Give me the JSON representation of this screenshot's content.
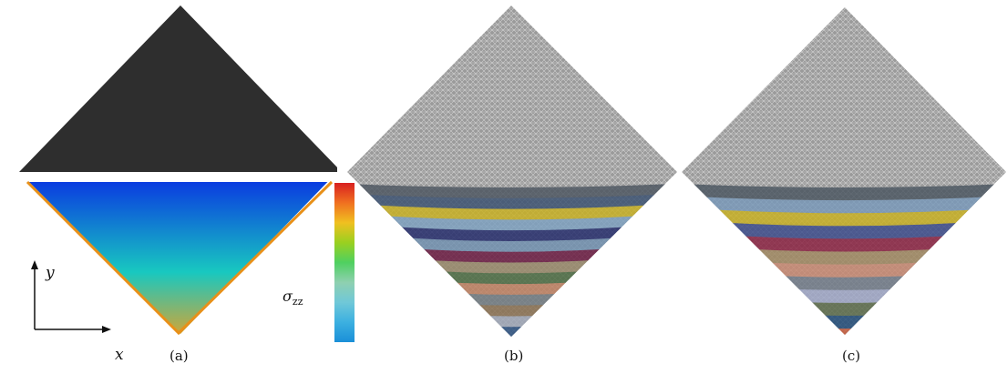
{
  "panels": [
    {
      "caption": "(a)"
    },
    {
      "caption": "(b)"
    },
    {
      "caption": "(c)"
    }
  ],
  "axes": {
    "x_label": "x",
    "y_label": "y"
  },
  "colorbar": {
    "symbol": "σ",
    "subscript": "zz",
    "colors": [
      "#1a8fd8",
      "#3cb0e0",
      "#70c8d8",
      "#8fd0b0",
      "#4fd060",
      "#9ad020",
      "#f0c020",
      "#f07020",
      "#d82020"
    ]
  },
  "stress_colors": {
    "empty": "#2e2e2e",
    "top": "#0a3ce0",
    "mid": "#18c8c0",
    "bottom": "#f0a020"
  },
  "layer_colors_b": [
    "#4c5560",
    "#3a5070",
    "#c8b020",
    "#7da0c0",
    "#222a6a",
    "#7090b0",
    "#6a1840",
    "#988868",
    "#4a6a40",
    "#c08060",
    "#707a80",
    "#8a7050",
    "#a0a8b8",
    "#2a5080",
    "#c85030",
    "#2a6a48"
  ],
  "layer_colors_c": [
    "#4a5560",
    "#7898b8",
    "#c8b020",
    "#3a4a8a",
    "#8a2040",
    "#a08860",
    "#c88870",
    "#707a88",
    "#a0a8c8",
    "#5a6a48",
    "#1e4a78",
    "#c85a3a",
    "#2e6040"
  ]
}
